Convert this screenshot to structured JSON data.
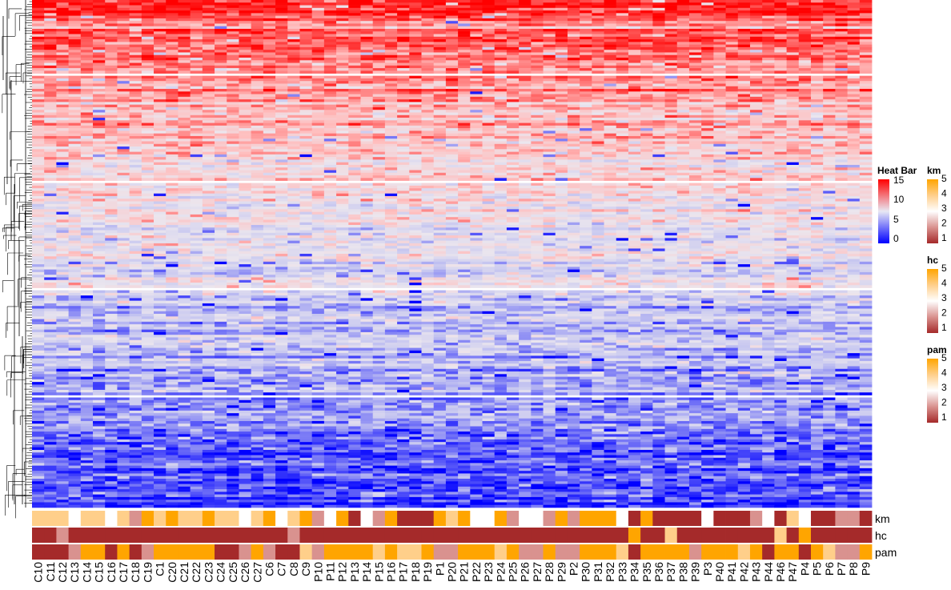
{
  "chart_data": {
    "type": "heatmap",
    "title": "",
    "columns": [
      "C10",
      "C11",
      "C12",
      "C13",
      "C14",
      "C15",
      "C16",
      "C17",
      "C18",
      "C19",
      "C1",
      "C20",
      "C21",
      "C22",
      "C23",
      "C24",
      "C25",
      "C26",
      "C27",
      "C6",
      "C7",
      "C8",
      "C9",
      "P10",
      "P11",
      "P12",
      "P13",
      "P14",
      "P15",
      "P16",
      "P17",
      "P18",
      "P19",
      "P1",
      "P20",
      "P21",
      "P22",
      "P23",
      "P24",
      "P25",
      "P26",
      "P27",
      "P28",
      "P29",
      "P2",
      "P30",
      "P31",
      "P32",
      "P33",
      "P34",
      "P35",
      "P36",
      "P37",
      "P38",
      "P39",
      "P3",
      "P40",
      "P41",
      "P42",
      "P43",
      "P44",
      "P46",
      "P47",
      "P4",
      "P5",
      "P6",
      "P7",
      "P8",
      "P9"
    ],
    "value_range": [
      0,
      15
    ],
    "row_count": 190,
    "row_splits": 5,
    "row_dendrogram": true,
    "main_legend": {
      "title": "Heat Bar",
      "ticks": [
        "0",
        "5",
        "10",
        "15"
      ],
      "colors": [
        "#0000ff",
        "#e8e8f4",
        "#ff0000"
      ]
    },
    "annotations": [
      {
        "name": "km",
        "legend_ticks": [
          "1",
          "2",
          "3",
          "4",
          "5"
        ],
        "values": [
          4,
          4,
          4,
          3,
          4,
          4,
          3,
          4,
          2,
          5,
          4,
          5,
          4,
          4,
          5,
          4,
          4,
          3,
          4,
          5,
          3,
          4,
          5,
          2,
          3,
          5,
          1,
          3,
          2,
          5,
          1,
          1,
          1,
          5,
          4,
          5,
          3,
          3,
          5,
          2,
          3,
          3,
          2,
          5,
          2,
          5,
          5,
          5,
          3,
          1,
          5,
          1,
          1,
          1,
          1,
          3,
          1,
          1,
          1,
          2,
          3,
          1,
          4,
          3,
          1,
          1,
          2,
          2,
          1
        ]
      },
      {
        "name": "hc",
        "legend_ticks": [
          "1",
          "2",
          "3",
          "4",
          "5"
        ],
        "values": [
          1,
          1,
          2,
          1,
          1,
          1,
          1,
          1,
          1,
          1,
          1,
          1,
          1,
          1,
          1,
          1,
          1,
          1,
          1,
          1,
          1,
          2,
          1,
          1,
          1,
          1,
          1,
          1,
          1,
          1,
          1,
          1,
          1,
          1,
          1,
          1,
          1,
          1,
          1,
          1,
          1,
          1,
          1,
          1,
          1,
          1,
          1,
          1,
          1,
          5,
          1,
          1,
          4,
          1,
          1,
          1,
          1,
          1,
          1,
          1,
          1,
          4,
          1,
          5,
          1,
          1,
          1,
          1,
          1
        ]
      },
      {
        "name": "pam",
        "legend_ticks": [
          "1",
          "2",
          "3",
          "4",
          "5"
        ],
        "values": [
          1,
          1,
          1,
          2,
          5,
          5,
          1,
          5,
          1,
          2,
          5,
          5,
          5,
          5,
          5,
          1,
          1,
          2,
          5,
          2,
          1,
          1,
          4,
          2,
          5,
          5,
          5,
          5,
          4,
          5,
          4,
          4,
          5,
          2,
          2,
          5,
          5,
          5,
          4,
          5,
          2,
          2,
          5,
          2,
          2,
          5,
          5,
          5,
          4,
          1,
          5,
          5,
          5,
          5,
          2,
          5,
          5,
          5,
          4,
          5,
          1,
          5,
          5,
          1,
          5,
          4,
          2,
          2,
          5
        ]
      }
    ],
    "annotation_colors": {
      "1": "#a52a2a",
      "2": "#d9928f",
      "3": "#ffffff",
      "4": "#ffcf8a",
      "5": "#ffa500"
    },
    "axis_layout_note": ""
  }
}
